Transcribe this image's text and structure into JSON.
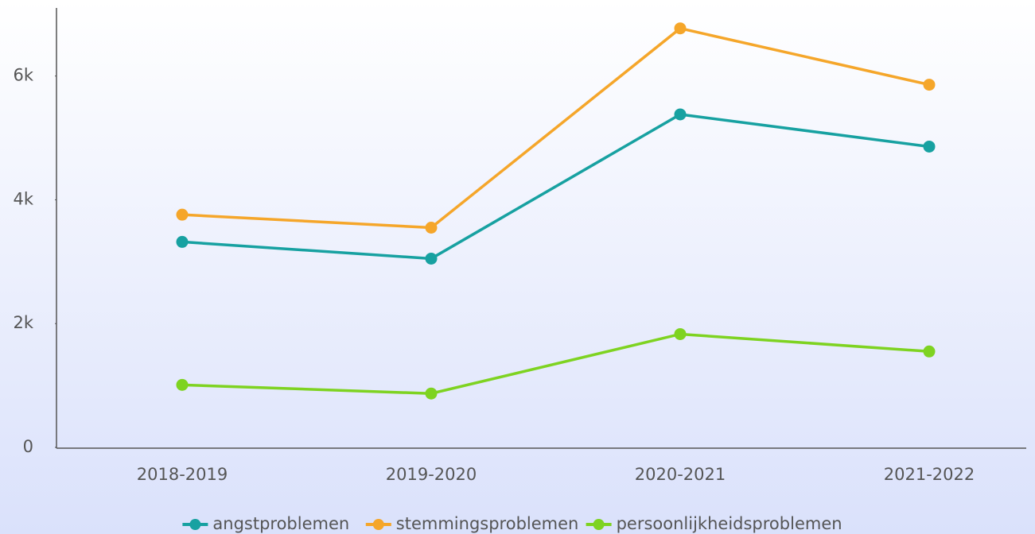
{
  "chart_data": {
    "type": "line",
    "categories": [
      "2018-2019",
      "2019-2020",
      "2020-2021",
      "2021-2022"
    ],
    "series": [
      {
        "name": "angstproblemen",
        "color": "#17a1a1",
        "values": [
          3320,
          3050,
          5380,
          4860
        ]
      },
      {
        "name": "stemmingsproblemen",
        "color": "#f5a62a",
        "values": [
          3760,
          3550,
          6770,
          5860
        ]
      },
      {
        "name": "persoonlijkheidsproblemen",
        "color": "#7ed321",
        "values": [
          1010,
          870,
          1830,
          1550
        ]
      }
    ],
    "ylim": [
      0,
      7100
    ],
    "yticks": [
      0,
      {
        "value": 2000,
        "label": "2k"
      },
      {
        "value": 4000,
        "label": "4k"
      },
      {
        "value": 6000,
        "label": "6k"
      }
    ],
    "grid": false,
    "legend": "bottom"
  }
}
